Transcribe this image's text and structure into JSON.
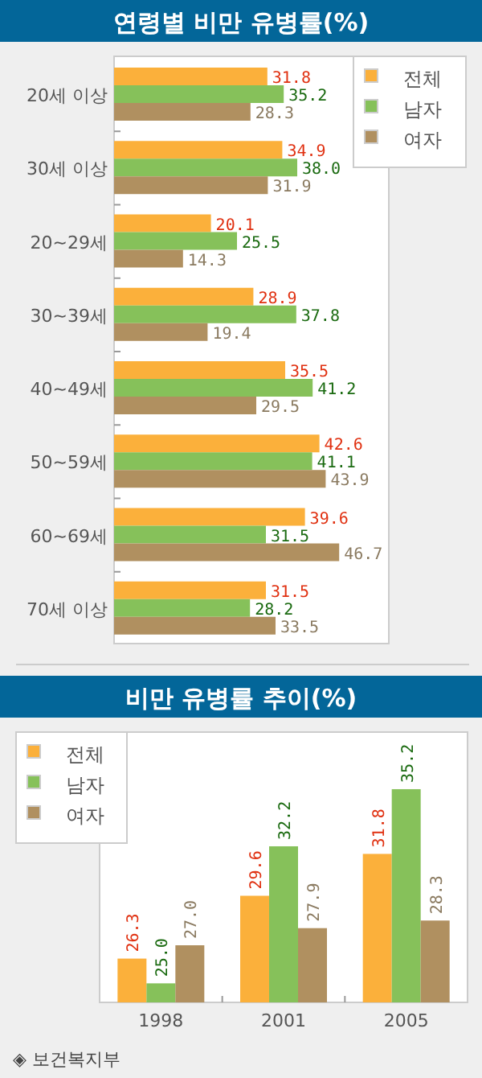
{
  "chart_data": [
    {
      "type": "bar",
      "orientation": "horizontal",
      "title": "연령별 비만 유병률(%)",
      "categories": [
        "20세 이상",
        "30세 이상",
        "20~29세",
        "30~39세",
        "40~49세",
        "50~59세",
        "60~69세",
        "70세 이상"
      ],
      "series": [
        {
          "name": "전체",
          "color": "#fbb03b",
          "values": [
            31.8,
            34.9,
            20.1,
            28.9,
            35.5,
            42.6,
            39.6,
            31.5
          ],
          "value_labels": [
            "31.8",
            "34.9",
            "20.1",
            "28.9",
            "35.5",
            "42.6",
            "39.6",
            "31.5"
          ]
        },
        {
          "name": "남자",
          "color": "#86c15a",
          "values": [
            35.2,
            38,
            25.5,
            37.8,
            41.2,
            41.1,
            31.5,
            28.2
          ],
          "value_labels": [
            "35.2",
            "38.0",
            "25.5",
            "37.8",
            "41.2",
            "41.1",
            "31.5",
            "28.2"
          ]
        },
        {
          "name": "여자",
          "color": "#b09060",
          "values": [
            28.3,
            31.9,
            14.3,
            19.4,
            29.5,
            43.9,
            46.7,
            33.5
          ],
          "value_labels": [
            "28.3",
            "31.9",
            "14.3",
            "19.4",
            "29.5",
            "43.9",
            "46.7",
            "33.5"
          ]
        }
      ],
      "xlim": [
        0,
        57
      ],
      "legend": "top right",
      "tick_labels": "y"
    },
    {
      "type": "bar",
      "title": "비만 유병률 추이(%)",
      "categories": [
        "1998",
        "2001",
        "2005"
      ],
      "series": [
        {
          "name": "전체",
          "color": "#fbb03b",
          "values": [
            26.3,
            29.6,
            31.8
          ],
          "value_labels": [
            "26.3",
            "29.6",
            "31.8"
          ]
        },
        {
          "name": "남자",
          "color": "#86c15a",
          "values": [
            25,
            32.2,
            35.2
          ],
          "value_labels": [
            "25.0",
            "32.2",
            "35.2"
          ]
        },
        {
          "name": "여자",
          "color": "#b09060",
          "values": [
            27,
            27.9,
            28.3
          ],
          "value_labels": [
            "27.0",
            "27.9",
            "28.3"
          ]
        }
      ],
      "ylim": [
        24,
        38.2
      ],
      "legend": "top left",
      "tick_labels": "x",
      "annotations": [
        "◈ 보건복지부"
      ]
    }
  ]
}
